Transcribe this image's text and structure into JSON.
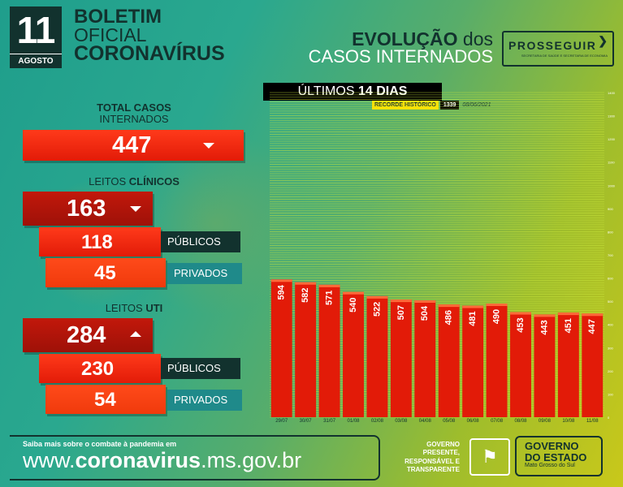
{
  "header": {
    "day": "11",
    "month": "AGOSTO",
    "title_line1": "BOLETIM",
    "title_line2": "OFICIAL",
    "title_line3": "CORONAVÍRUS",
    "evolution_line1_bold": "EVOLUÇÃO",
    "evolution_line1_thin": "dos",
    "evolution_line2": "CASOS INTERNADOS",
    "logo_text": "PROSSEGUIR",
    "logo_sub": "SECRETARIA DE SAÚDE E SECRETARIA DE ECONOMIA"
  },
  "summary": {
    "total_label_bold": "TOTAL CASOS",
    "total_label_thin": "INTERNADOS",
    "total_value": "447",
    "total_trend": "down",
    "clinicos_label_thin": "LEITOS",
    "clinicos_label_bold": "CLÍNICOS",
    "clinicos_value": "163",
    "clinicos_trend": "down",
    "clinicos_publicos": "118",
    "clinicos_privados": "45",
    "uti_label_thin": "LEITOS",
    "uti_label_bold": "UTI",
    "uti_value": "284",
    "uti_trend": "up",
    "uti_publicos": "230",
    "uti_privados": "54",
    "publicos_label": "PÚBLICOS",
    "privados_label": "PRIVADOS"
  },
  "chart_header": {
    "ultimos_thin": "ÚLTIMOS",
    "ultimos_bold": "14 DIAS",
    "recorde_label": "RECORDE HISTÓRICO",
    "recorde_value": "1339",
    "recorde_date": "08/06/2021"
  },
  "chart_data": {
    "type": "bar",
    "categories": [
      "29/07",
      "30/07",
      "31/07",
      "01/08",
      "02/08",
      "03/08",
      "04/08",
      "05/08",
      "06/08",
      "07/08",
      "08/08",
      "09/08",
      "10/08",
      "11/08"
    ],
    "values": [
      594,
      582,
      571,
      540,
      522,
      507,
      504,
      486,
      481,
      490,
      453,
      443,
      451,
      447
    ],
    "ylim": [
      0,
      1400
    ],
    "yticks": [
      0,
      100,
      200,
      300,
      400,
      500,
      600,
      700,
      800,
      900,
      1000,
      1100,
      1200,
      1300,
      1400
    ],
    "bar_color": "#e21b08",
    "grid": true
  },
  "footer": {
    "small_text": "Saiba mais sobre o combate à pandemia em",
    "url_prefix": "www.",
    "url_bold": "coronavirus",
    "url_suffix": ".ms.gov.br",
    "slogan_1": "GOVERNO",
    "slogan_2": "PRESENTE,",
    "slogan_3": "RESPONSÁVEL E",
    "slogan_4": "TRANSPARENTE",
    "gov_line1": "GOVERNO",
    "gov_line2": "DO ESTADO",
    "gov_line3": "Mato Grosso do Sul",
    "seal_icon": "state-seal-icon"
  }
}
